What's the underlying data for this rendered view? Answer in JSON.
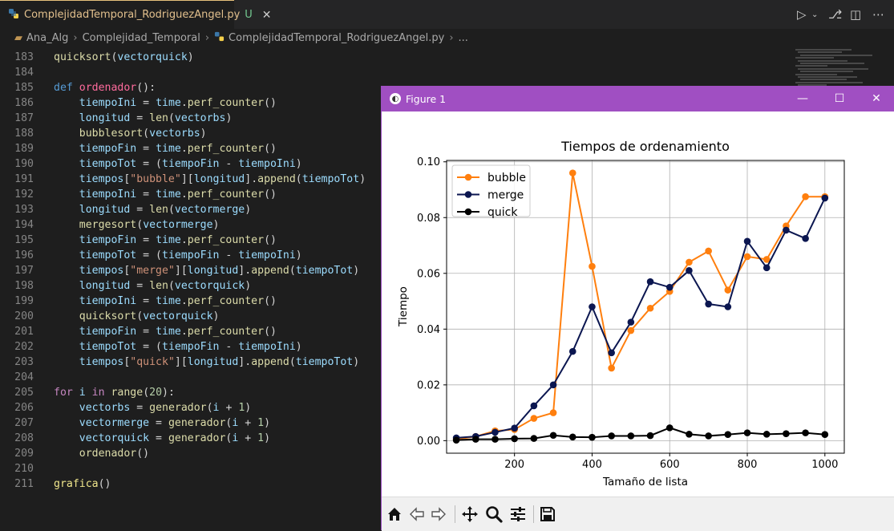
{
  "editor": {
    "tab": {
      "filename": "ComplejidadTemporal_RodriguezAngel.py",
      "status": "U",
      "close": "✕"
    },
    "breadcrumb": [
      "Ana_Alg",
      "Complejidad_Temporal",
      "ComplejidadTemporal_RodriguezAngel.py",
      "..."
    ],
    "lines": [
      {
        "n": "183",
        "t": [
          [
            "fn",
            "quicksort"
          ],
          [
            "plain",
            "("
          ],
          [
            "var",
            "vectorquick"
          ],
          [
            "plain",
            ")"
          ]
        ]
      },
      {
        "n": "184",
        "t": []
      },
      {
        "n": "185",
        "t": [
          [
            "def",
            "def "
          ],
          [
            "fn2",
            "ordenador"
          ],
          [
            "plain",
            "():"
          ]
        ]
      },
      {
        "n": "186",
        "t": [
          [
            "plain",
            "    "
          ],
          [
            "var",
            "tiempoIni"
          ],
          [
            "plain",
            " = "
          ],
          [
            "var",
            "time"
          ],
          [
            "plain",
            "."
          ],
          [
            "fn",
            "perf_counter"
          ],
          [
            "plain",
            "()"
          ]
        ]
      },
      {
        "n": "187",
        "t": [
          [
            "plain",
            "    "
          ],
          [
            "var",
            "longitud"
          ],
          [
            "plain",
            " = "
          ],
          [
            "fn",
            "len"
          ],
          [
            "plain",
            "("
          ],
          [
            "var",
            "vectorbs"
          ],
          [
            "plain",
            ")"
          ]
        ]
      },
      {
        "n": "188",
        "t": [
          [
            "plain",
            "    "
          ],
          [
            "fn",
            "bubblesort"
          ],
          [
            "plain",
            "("
          ],
          [
            "var",
            "vectorbs"
          ],
          [
            "plain",
            ")"
          ]
        ]
      },
      {
        "n": "189",
        "t": [
          [
            "plain",
            "    "
          ],
          [
            "var",
            "tiempoFin"
          ],
          [
            "plain",
            " = "
          ],
          [
            "var",
            "time"
          ],
          [
            "plain",
            "."
          ],
          [
            "fn",
            "perf_counter"
          ],
          [
            "plain",
            "()"
          ]
        ]
      },
      {
        "n": "190",
        "t": [
          [
            "plain",
            "    "
          ],
          [
            "var",
            "tiempoTot"
          ],
          [
            "plain",
            " = ("
          ],
          [
            "var",
            "tiempoFin"
          ],
          [
            "plain",
            " - "
          ],
          [
            "var",
            "tiempoIni"
          ],
          [
            "plain",
            ")"
          ]
        ]
      },
      {
        "n": "191",
        "t": [
          [
            "plain",
            "    "
          ],
          [
            "var",
            "tiempos"
          ],
          [
            "plain",
            "["
          ],
          [
            "str",
            "\"bubble\""
          ],
          [
            "plain",
            "]["
          ],
          [
            "var",
            "longitud"
          ],
          [
            "plain",
            "]."
          ],
          [
            "fn",
            "append"
          ],
          [
            "plain",
            "("
          ],
          [
            "var",
            "tiempoTot"
          ],
          [
            "plain",
            ")"
          ]
        ]
      },
      {
        "n": "192",
        "t": [
          [
            "plain",
            "    "
          ],
          [
            "var",
            "tiempoIni"
          ],
          [
            "plain",
            " = "
          ],
          [
            "var",
            "time"
          ],
          [
            "plain",
            "."
          ],
          [
            "fn",
            "perf_counter"
          ],
          [
            "plain",
            "()"
          ]
        ]
      },
      {
        "n": "193",
        "t": [
          [
            "plain",
            "    "
          ],
          [
            "var",
            "longitud"
          ],
          [
            "plain",
            " = "
          ],
          [
            "fn",
            "len"
          ],
          [
            "plain",
            "("
          ],
          [
            "var",
            "vectormerge"
          ],
          [
            "plain",
            ")"
          ]
        ]
      },
      {
        "n": "194",
        "t": [
          [
            "plain",
            "    "
          ],
          [
            "fn",
            "mergesort"
          ],
          [
            "plain",
            "("
          ],
          [
            "var",
            "vectormerge"
          ],
          [
            "plain",
            ")"
          ]
        ]
      },
      {
        "n": "195",
        "t": [
          [
            "plain",
            "    "
          ],
          [
            "var",
            "tiempoFin"
          ],
          [
            "plain",
            " = "
          ],
          [
            "var",
            "time"
          ],
          [
            "plain",
            "."
          ],
          [
            "fn",
            "perf_counter"
          ],
          [
            "plain",
            "()"
          ]
        ]
      },
      {
        "n": "196",
        "t": [
          [
            "plain",
            "    "
          ],
          [
            "var",
            "tiempoTot"
          ],
          [
            "plain",
            " = ("
          ],
          [
            "var",
            "tiempoFin"
          ],
          [
            "plain",
            " - "
          ],
          [
            "var",
            "tiempoIni"
          ],
          [
            "plain",
            ")"
          ]
        ]
      },
      {
        "n": "197",
        "t": [
          [
            "plain",
            "    "
          ],
          [
            "var",
            "tiempos"
          ],
          [
            "plain",
            "["
          ],
          [
            "str",
            "\"merge\""
          ],
          [
            "plain",
            "]["
          ],
          [
            "var",
            "longitud"
          ],
          [
            "plain",
            "]."
          ],
          [
            "fn",
            "append"
          ],
          [
            "plain",
            "("
          ],
          [
            "var",
            "tiempoTot"
          ],
          [
            "plain",
            ")"
          ]
        ]
      },
      {
        "n": "198",
        "t": [
          [
            "plain",
            "    "
          ],
          [
            "var",
            "longitud"
          ],
          [
            "plain",
            " = "
          ],
          [
            "fn",
            "len"
          ],
          [
            "plain",
            "("
          ],
          [
            "var",
            "vectorquick"
          ],
          [
            "plain",
            ")"
          ]
        ]
      },
      {
        "n": "199",
        "t": [
          [
            "plain",
            "    "
          ],
          [
            "var",
            "tiempoIni"
          ],
          [
            "plain",
            " = "
          ],
          [
            "var",
            "time"
          ],
          [
            "plain",
            "."
          ],
          [
            "fn",
            "perf_counter"
          ],
          [
            "plain",
            "()"
          ]
        ]
      },
      {
        "n": "200",
        "t": [
          [
            "plain",
            "    "
          ],
          [
            "fn",
            "quicksort"
          ],
          [
            "plain",
            "("
          ],
          [
            "var",
            "vectorquick"
          ],
          [
            "plain",
            ")"
          ]
        ]
      },
      {
        "n": "201",
        "t": [
          [
            "plain",
            "    "
          ],
          [
            "var",
            "tiempoFin"
          ],
          [
            "plain",
            " = "
          ],
          [
            "var",
            "time"
          ],
          [
            "plain",
            "."
          ],
          [
            "fn",
            "perf_counter"
          ],
          [
            "plain",
            "()"
          ]
        ]
      },
      {
        "n": "202",
        "t": [
          [
            "plain",
            "    "
          ],
          [
            "var",
            "tiempoTot"
          ],
          [
            "plain",
            " = ("
          ],
          [
            "var",
            "tiempoFin"
          ],
          [
            "plain",
            " - "
          ],
          [
            "var",
            "tiempoIni"
          ],
          [
            "plain",
            ")"
          ]
        ]
      },
      {
        "n": "203",
        "t": [
          [
            "plain",
            "    "
          ],
          [
            "var",
            "tiempos"
          ],
          [
            "plain",
            "["
          ],
          [
            "str",
            "\"quick\""
          ],
          [
            "plain",
            "]["
          ],
          [
            "var",
            "longitud"
          ],
          [
            "plain",
            "]."
          ],
          [
            "fn",
            "append"
          ],
          [
            "plain",
            "("
          ],
          [
            "var",
            "tiempoTot"
          ],
          [
            "plain",
            ")"
          ]
        ]
      },
      {
        "n": "204",
        "t": []
      },
      {
        "n": "205",
        "t": [
          [
            "kw2",
            "for "
          ],
          [
            "var",
            "i"
          ],
          [
            "kw2",
            " in "
          ],
          [
            "fn",
            "range"
          ],
          [
            "plain",
            "("
          ],
          [
            "num",
            "20"
          ],
          [
            "plain",
            "):"
          ]
        ]
      },
      {
        "n": "206",
        "t": [
          [
            "plain",
            "    "
          ],
          [
            "var",
            "vectorbs"
          ],
          [
            "plain",
            " = "
          ],
          [
            "fn",
            "generador"
          ],
          [
            "plain",
            "("
          ],
          [
            "var",
            "i"
          ],
          [
            "plain",
            " + "
          ],
          [
            "num",
            "1"
          ],
          [
            "plain",
            ")"
          ]
        ]
      },
      {
        "n": "207",
        "t": [
          [
            "plain",
            "    "
          ],
          [
            "var",
            "vectormerge"
          ],
          [
            "plain",
            " = "
          ],
          [
            "fn",
            "generador"
          ],
          [
            "plain",
            "("
          ],
          [
            "var",
            "i"
          ],
          [
            "plain",
            " + "
          ],
          [
            "num",
            "1"
          ],
          [
            "plain",
            ")"
          ]
        ]
      },
      {
        "n": "208",
        "t": [
          [
            "plain",
            "    "
          ],
          [
            "var",
            "vectorquick"
          ],
          [
            "plain",
            " = "
          ],
          [
            "fn",
            "generador"
          ],
          [
            "plain",
            "("
          ],
          [
            "var",
            "i"
          ],
          [
            "plain",
            " + "
          ],
          [
            "num",
            "1"
          ],
          [
            "plain",
            ")"
          ]
        ]
      },
      {
        "n": "209",
        "t": [
          [
            "plain",
            "    "
          ],
          [
            "fn",
            "ordenador"
          ],
          [
            "plain",
            "()"
          ]
        ]
      },
      {
        "n": "210",
        "t": []
      },
      {
        "n": "211",
        "t": [
          [
            "gfn",
            "grafica"
          ],
          [
            "plain",
            "()"
          ]
        ]
      }
    ]
  },
  "figure_window": {
    "title": "Figure 1",
    "minimize": "—",
    "maximize": "☐",
    "close": "✕"
  },
  "colors": {
    "bubble": "#ff7f0e",
    "merge": "#0b1650",
    "quick": "#000000",
    "titlebar": "#a04fc2"
  },
  "chart_data": {
    "type": "line",
    "title": "Tiempos de ordenamiento",
    "xlabel": "Tamaño de lista",
    "ylabel": "Tiempo",
    "xlim": [
      25,
      1050
    ],
    "ylim": [
      -0.0045,
      0.1005
    ],
    "xticks": [
      200,
      400,
      600,
      800,
      1000
    ],
    "yticks": [
      0.0,
      0.02,
      0.04,
      0.06,
      0.08,
      0.1
    ],
    "ytick_labels": [
      "0.00",
      "0.02",
      "0.04",
      "0.06",
      "0.08",
      "0.10"
    ],
    "grid": true,
    "legend": "upper left",
    "x": [
      50,
      100,
      150,
      200,
      250,
      300,
      350,
      400,
      450,
      500,
      550,
      600,
      650,
      700,
      750,
      800,
      850,
      900,
      950,
      1000
    ],
    "series": [
      {
        "name": "bubble",
        "values": [
          0.0005,
          0.0015,
          0.0035,
          0.004,
          0.008,
          0.01,
          0.096,
          0.0625,
          0.026,
          0.0395,
          0.0475,
          0.0535,
          0.064,
          0.068,
          0.054,
          0.066,
          0.065,
          0.077,
          0.0875,
          0.0875
        ]
      },
      {
        "name": "merge",
        "values": [
          0.001,
          0.0015,
          0.003,
          0.0045,
          0.0125,
          0.02,
          0.032,
          0.048,
          0.0315,
          0.0425,
          0.057,
          0.055,
          0.061,
          0.049,
          0.048,
          0.0715,
          0.062,
          0.0755,
          0.0725,
          0.087
        ]
      },
      {
        "name": "quick",
        "values": [
          0.0002,
          0.0005,
          0.0005,
          0.0007,
          0.0008,
          0.0019,
          0.0013,
          0.0012,
          0.0017,
          0.0017,
          0.0018,
          0.0046,
          0.0023,
          0.0017,
          0.0022,
          0.0028,
          0.0023,
          0.0025,
          0.0028,
          0.0022
        ]
      }
    ]
  },
  "toolbar_tools": [
    "home-icon",
    "back-arrow-icon",
    "forward-arrow-icon",
    "pan-icon",
    "zoom-icon",
    "configure-subplots-icon",
    "save-icon"
  ]
}
